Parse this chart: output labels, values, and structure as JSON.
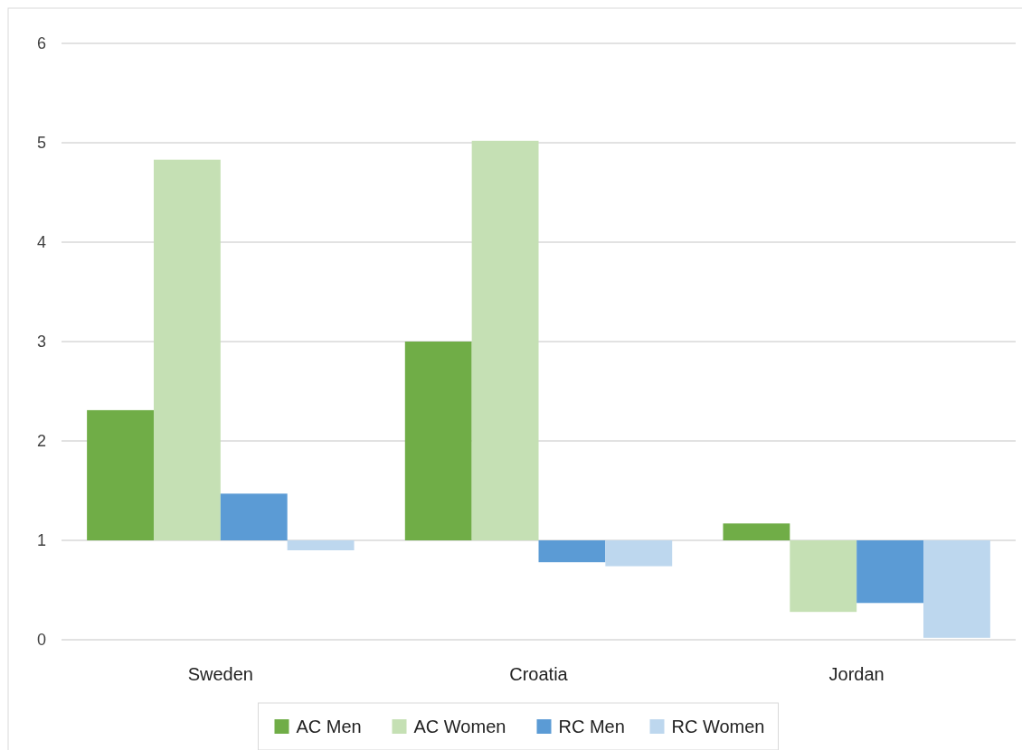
{
  "chart_data": {
    "type": "bar",
    "categories": [
      "Sweden",
      "Croatia",
      "Jordan"
    ],
    "series": [
      {
        "name": "AC Men",
        "color": "#70ad47",
        "values": [
          1.31,
          2.0,
          0.17
        ],
        "base": [
          1,
          1,
          1
        ]
      },
      {
        "name": "AC Women",
        "color": "#c5e0b4",
        "values": [
          3.83,
          4.02,
          -0.72
        ],
        "base": [
          1,
          1,
          1
        ]
      },
      {
        "name": "RC Men",
        "color": "#5b9bd5",
        "values": [
          0.47,
          -0.22,
          -0.63
        ],
        "base": [
          1,
          1,
          1
        ]
      },
      {
        "name": "RC Women",
        "color": "#bdd7ee",
        "values": [
          -0.1,
          -0.26,
          -0.98
        ],
        "base": [
          1,
          1,
          1
        ]
      }
    ],
    "ylim": [
      0,
      6
    ],
    "yticks": [
      0,
      1,
      2,
      3,
      4,
      5,
      6
    ],
    "grid": "y",
    "legend": "bottom"
  }
}
